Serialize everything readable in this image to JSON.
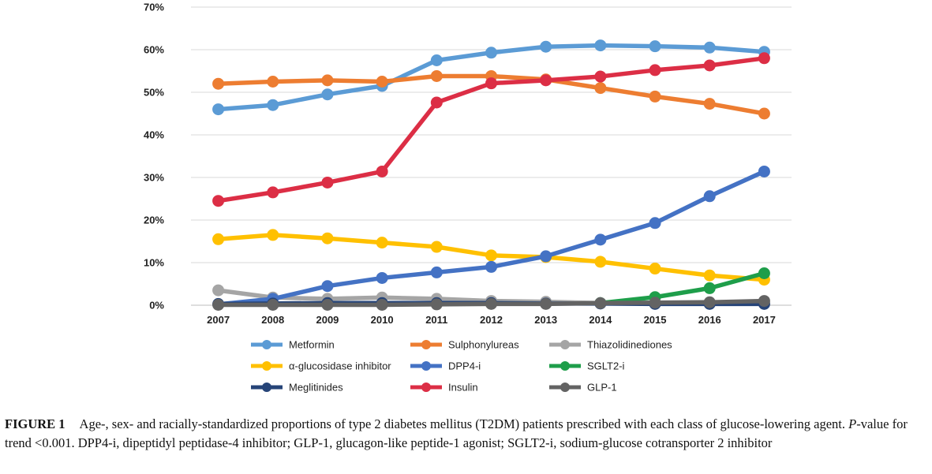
{
  "chart_data": {
    "type": "line",
    "x": [
      "2007",
      "2008",
      "2009",
      "2010",
      "2011",
      "2012",
      "2013",
      "2014",
      "2015",
      "2016",
      "2017"
    ],
    "ylim": [
      0,
      70
    ],
    "yticks": [
      "0%",
      "10%",
      "20%",
      "30%",
      "40%",
      "50%",
      "60%",
      "70%"
    ],
    "grid": "horizontal",
    "legend_position": "bottom",
    "series": [
      {
        "name": "Metformin",
        "color": "#5B9BD5",
        "values": [
          46,
          47,
          49.5,
          51.5,
          57.5,
          59.3,
          60.7,
          61,
          60.8,
          60.5,
          59.5
        ]
      },
      {
        "name": "Sulphonylureas",
        "color": "#ED7D31",
        "values": [
          52,
          52.5,
          52.8,
          52.5,
          53.8,
          53.8,
          53,
          51,
          49,
          47.3,
          45
        ]
      },
      {
        "name": "Thiazolidinediones",
        "color": "#A5A5A5",
        "values": [
          3.5,
          1.8,
          1.5,
          1.8,
          1.5,
          1,
          0.8,
          0.5,
          0.5,
          0.5,
          0.5
        ]
      },
      {
        "name": "α-glucosidase inhibitor",
        "color": "#FFC000",
        "values": [
          15.5,
          16.5,
          15.7,
          14.7,
          13.7,
          11.7,
          11.3,
          10.2,
          8.6,
          7,
          6
        ]
      },
      {
        "name": "DPP4-i",
        "color": "#4472C4",
        "values": [
          0.2,
          1.5,
          4.5,
          6.4,
          7.7,
          9,
          11.5,
          15.4,
          19.3,
          25.6,
          31.4
        ]
      },
      {
        "name": "SGLT2-i",
        "color": "#1E9E4A",
        "values": [
          null,
          null,
          null,
          null,
          null,
          null,
          null,
          0.5,
          1.9,
          4,
          7.5
        ]
      },
      {
        "name": "Meglitinides",
        "color": "#264478",
        "values": [
          0.3,
          0.4,
          0.5,
          0.5,
          0.5,
          0.5,
          0.4,
          0.4,
          0.3,
          0.3,
          0.3
        ]
      },
      {
        "name": "Insulin",
        "color": "#DC2E45",
        "values": [
          24.5,
          26.5,
          28.8,
          31.4,
          47.6,
          52.1,
          52.8,
          53.7,
          55.2,
          56.3,
          58
        ]
      },
      {
        "name": "GLP-1",
        "color": "#636363",
        "values": [
          0.1,
          0.1,
          0.1,
          0.1,
          0.2,
          0.3,
          0.3,
          0.5,
          0.6,
          0.7,
          1
        ]
      }
    ]
  },
  "caption": {
    "label": "FIGURE 1",
    "text_before_italic": "Age-, sex- and racially-standardized proportions of type 2 diabetes mellitus (T2DM) patients prescribed with each class of glucose-lowering agent.",
    "italic": "P",
    "text_after_italic": "-value for trend <0.001. DPP4-i, dipeptidyl peptidase-4 inhibitor; GLP-1, glucagon-like peptide-1 agonist; SGLT2-i, sodium-glucose cotransporter 2 inhibitor"
  }
}
